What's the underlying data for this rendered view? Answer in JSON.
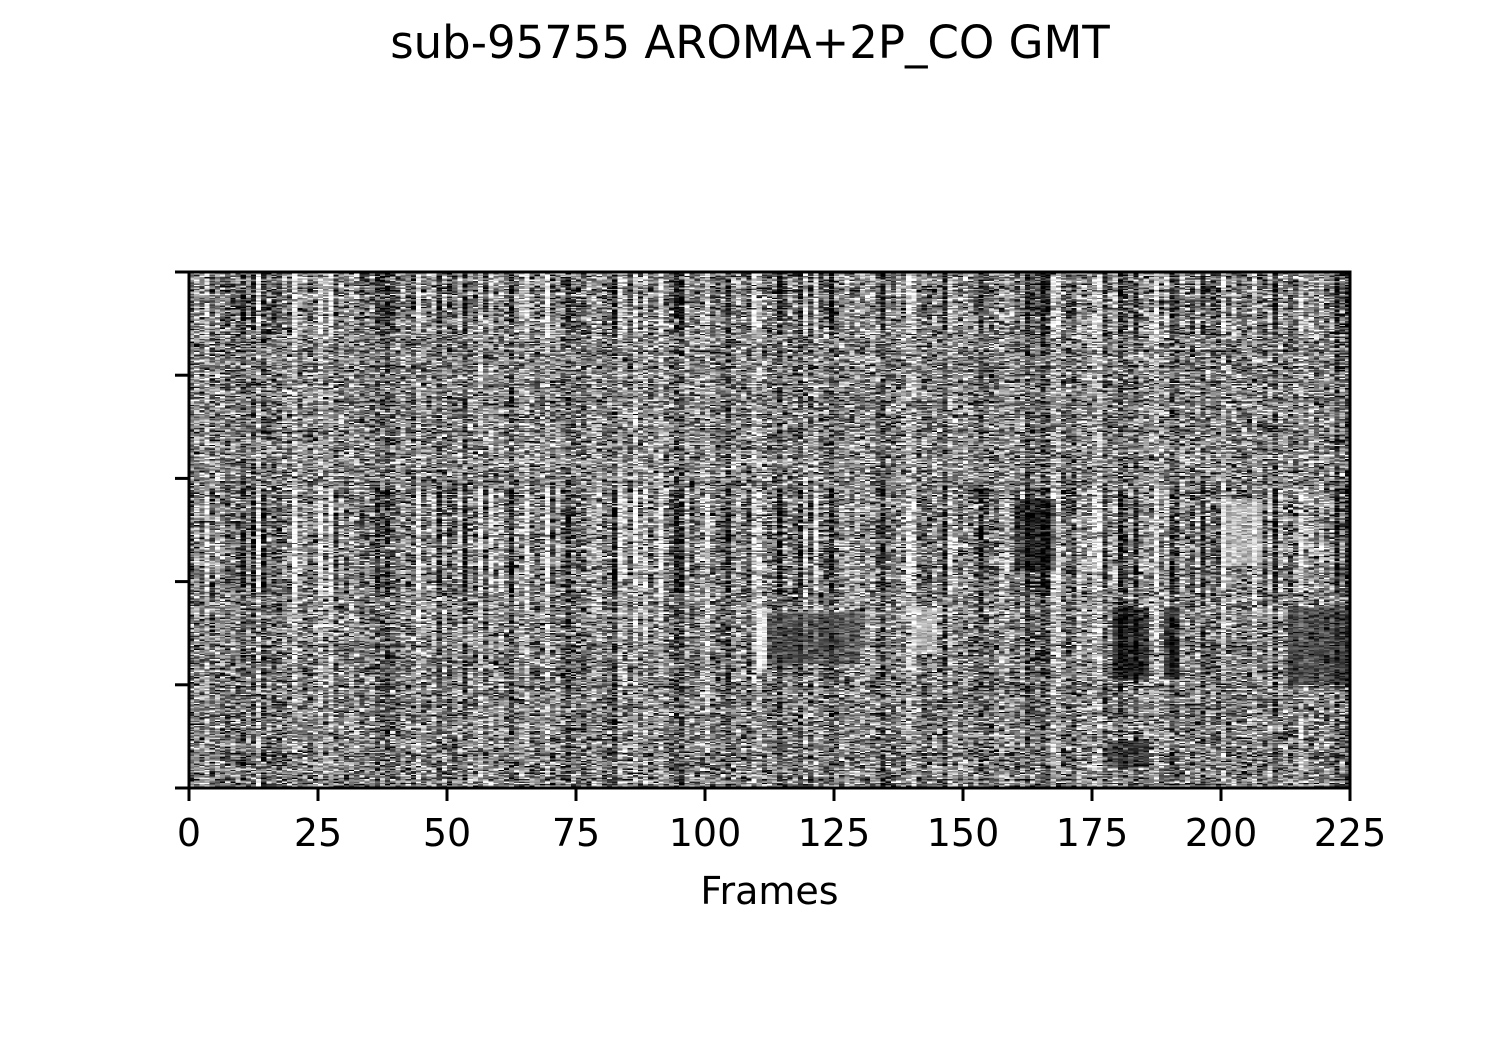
{
  "chart_data": {
    "type": "heatmap",
    "title": "sub-95755 AROMA+2P_CO GMT",
    "xlabel": "Frames",
    "ylabel": "",
    "xlim": [
      0,
      225
    ],
    "x_ticks": [
      0,
      25,
      50,
      75,
      100,
      125,
      150,
      175,
      200,
      225
    ],
    "x_tick_labels": [
      "0",
      "25",
      "50",
      "75",
      "100",
      "125",
      "150",
      "175",
      "200",
      "225"
    ],
    "y_tick_count": 6,
    "y_tick_labels": [],
    "colormap": "gray",
    "grid": false,
    "legend": "none",
    "colors": {
      "low": "#000000",
      "high": "#ffffff",
      "axis": "#000000"
    },
    "value_range": [
      -1,
      1
    ],
    "n_frames": 225,
    "bright_frames": [
      3,
      13,
      20,
      25,
      27,
      44,
      56,
      58,
      65,
      69,
      83,
      86,
      91,
      100,
      109,
      110,
      121,
      139,
      140,
      147,
      167,
      168,
      175,
      176,
      187,
      200,
      206,
      215
    ],
    "dark_frames": [
      10,
      12,
      14,
      36,
      38,
      48,
      53,
      62,
      73,
      82,
      94,
      95,
      104,
      114,
      118,
      124,
      134,
      146,
      153,
      162,
      165,
      166,
      180,
      183,
      190,
      196,
      210,
      222,
      224
    ],
    "blocks": [
      {
        "frame_start": 179,
        "frame_end": 186,
        "row_start": 0.65,
        "row_end": 0.79,
        "value": -0.7
      },
      {
        "frame_start": 189,
        "frame_end": 192,
        "row_start": 0.65,
        "row_end": 0.79,
        "value": -0.6
      },
      {
        "frame_start": 112,
        "frame_end": 130,
        "row_start": 0.66,
        "row_end": 0.76,
        "value": -0.35
      },
      {
        "frame_start": 110,
        "frame_end": 112,
        "row_start": 0.65,
        "row_end": 0.77,
        "value": 0.8
      },
      {
        "frame_start": 160,
        "frame_end": 168,
        "row_start": 0.44,
        "row_end": 0.58,
        "value": -0.55
      },
      {
        "frame_start": 178,
        "frame_end": 186,
        "row_start": 0.91,
        "row_end": 0.96,
        "value": -0.5
      },
      {
        "frame_start": 213,
        "frame_end": 225,
        "row_start": 0.65,
        "row_end": 0.8,
        "value": -0.45
      },
      {
        "frame_start": 140,
        "frame_end": 145,
        "row_start": 0.65,
        "row_end": 0.74,
        "value": 0.5
      },
      {
        "frame_start": 200,
        "frame_end": 208,
        "row_start": 0.44,
        "row_end": 0.57,
        "value": 0.45
      }
    ]
  }
}
